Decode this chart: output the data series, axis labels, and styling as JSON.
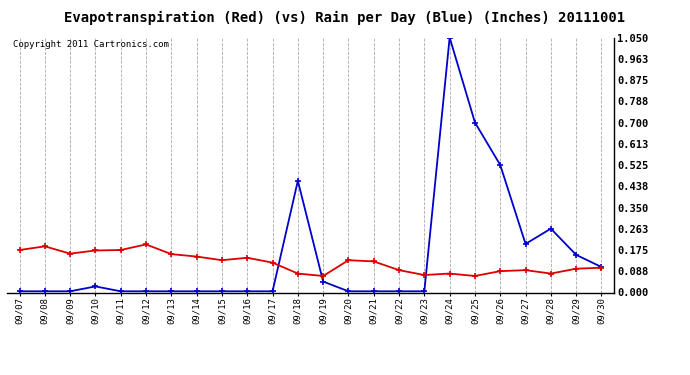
{
  "title": "Evapotranspiration (Red) (vs) Rain per Day (Blue) (Inches) 20111001",
  "copyright_text": "Copyright 2011 Cartronics.com",
  "dates": [
    "09/07",
    "09/08",
    "09/09",
    "09/10",
    "09/11",
    "09/12",
    "09/13",
    "09/14",
    "09/15",
    "09/16",
    "09/17",
    "09/18",
    "09/19",
    "09/20",
    "09/21",
    "09/22",
    "09/23",
    "09/24",
    "09/25",
    "09/26",
    "09/27",
    "09/28",
    "09/29",
    "09/30"
  ],
  "red_data": [
    0.175,
    0.19,
    0.16,
    0.173,
    0.175,
    0.198,
    0.158,
    0.148,
    0.133,
    0.143,
    0.123,
    0.078,
    0.068,
    0.133,
    0.128,
    0.092,
    0.072,
    0.078,
    0.068,
    0.088,
    0.092,
    0.078,
    0.098,
    0.102
  ],
  "blue_data": [
    0.005,
    0.005,
    0.005,
    0.025,
    0.005,
    0.005,
    0.005,
    0.005,
    0.005,
    0.005,
    0.005,
    0.46,
    0.045,
    0.005,
    0.005,
    0.005,
    0.005,
    1.05,
    0.7,
    0.525,
    0.2,
    0.263,
    0.155,
    0.105
  ],
  "ylim": [
    0.0,
    1.05
  ],
  "yticks": [
    0.0,
    0.088,
    0.175,
    0.263,
    0.35,
    0.438,
    0.525,
    0.613,
    0.7,
    0.788,
    0.875,
    0.963,
    1.05
  ],
  "red_color": "#dd0000",
  "blue_color": "#0000cc",
  "bg_color": "#ffffff",
  "grid_color": "#aaaaaa",
  "title_fontsize": 10,
  "copyright_fontsize": 6.5
}
